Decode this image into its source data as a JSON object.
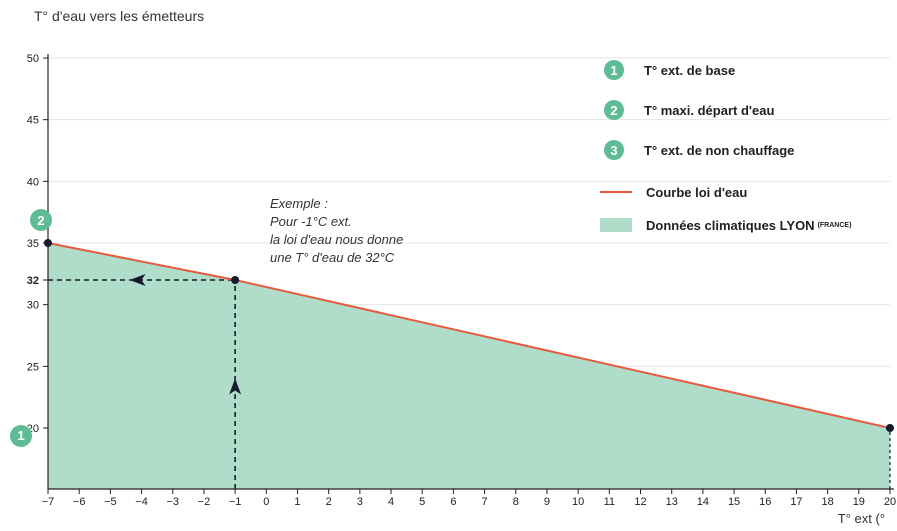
{
  "chart_data": {
    "type": "area",
    "ylabel": "T° d'eau vers les émetteurs",
    "xlabel": "T° ext (°",
    "xlim": [
      -7,
      20
    ],
    "ylim": [
      17.5,
      51
    ],
    "x_ticks": [
      -7,
      -6,
      -5,
      -4,
      -3,
      -2,
      -1,
      0,
      1,
      2,
      3,
      4,
      5,
      6,
      7,
      8,
      9,
      10,
      11,
      12,
      13,
      14,
      15,
      16,
      17,
      18,
      19,
      20
    ],
    "y_ticks": [
      20,
      25,
      30,
      35,
      40,
      45,
      50
    ],
    "y_tick_labels": [
      "20",
      "25",
      "30",
      "35",
      "40",
      "45",
      "50"
    ],
    "highlight_tick": {
      "value": 32,
      "label": "32"
    },
    "grid": "horizontal",
    "series": [
      {
        "name": "Courbe loi d'eau",
        "x": [
          -7,
          -1,
          20
        ],
        "y": [
          35,
          32,
          20
        ],
        "color": "#e85a3f",
        "fill_color": "#afddc9"
      }
    ],
    "example_point": {
      "x": -1,
      "y": 32
    },
    "annotation": [
      "Exemple :",
      "Pour -1°C ext.",
      "la loi d'eau nous donne",
      "une T° d'eau de 32°C"
    ],
    "markers": [
      {
        "label": "1",
        "x": -7,
        "y": 17.5
      },
      {
        "label": "2",
        "x": -7,
        "y": 35
      }
    ]
  },
  "legend": {
    "placement": "top-right",
    "items": [
      {
        "kind": "badge",
        "badge": "1",
        "label": "T° ext. de base"
      },
      {
        "kind": "badge",
        "badge": "2",
        "label": "T° maxi. départ d'eau"
      },
      {
        "kind": "badge",
        "badge": "3",
        "label": "T° ext. de non chauffage"
      },
      {
        "kind": "line",
        "label": "Courbe loi d'eau"
      },
      {
        "kind": "swatch",
        "label": "Données climatiques LYON",
        "small": "(FRANCE)"
      }
    ]
  },
  "colors": {
    "accent": "#5dbb95",
    "curve": "#e85a3f",
    "fill": "#afddc9",
    "grid": "#e4e4e4",
    "axis": "#222222"
  }
}
